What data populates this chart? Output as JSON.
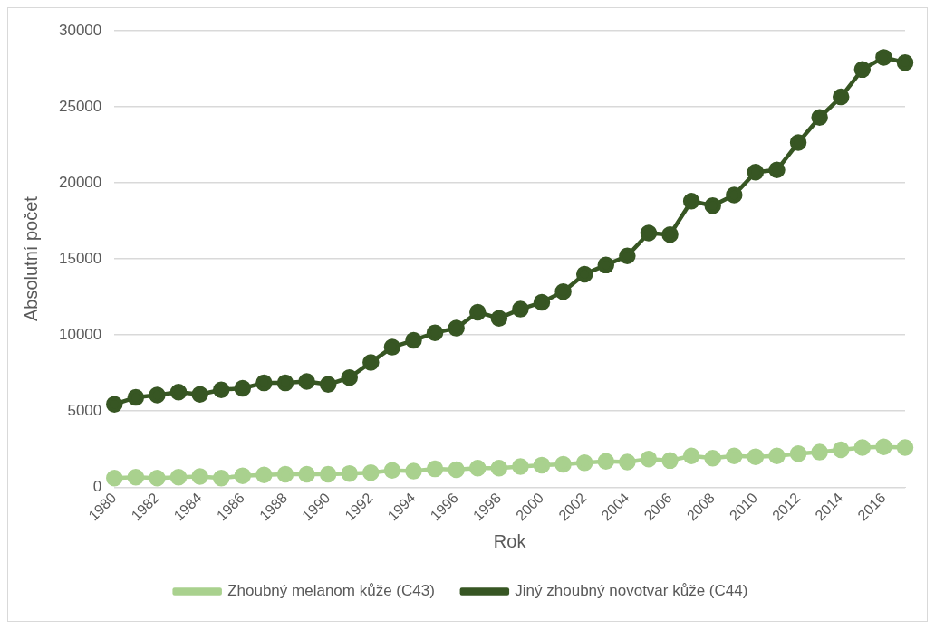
{
  "chart_data": {
    "type": "line",
    "xlabel": "Rok",
    "ylabel": "Absolutní počet",
    "categories": [
      "1980",
      null,
      "1982",
      null,
      "1984",
      null,
      "1986",
      null,
      "1988",
      null,
      "1990",
      null,
      "1992",
      null,
      "1994",
      null,
      "1996",
      null,
      "1998",
      null,
      "2000",
      null,
      "2002",
      null,
      "2004",
      null,
      "2006",
      null,
      "2008",
      null,
      "2010",
      null,
      "2012",
      null,
      "2014",
      null,
      "2016",
      null
    ],
    "series": [
      {
        "name": "Zhoubný melanom kůže (C43)",
        "color": "#a9d18e",
        "values": [
          600,
          650,
          600,
          650,
          700,
          600,
          750,
          800,
          850,
          850,
          850,
          900,
          950,
          1100,
          1050,
          1200,
          1150,
          1250,
          1250,
          1350,
          1450,
          1500,
          1600,
          1700,
          1650,
          1850,
          1750,
          2050,
          1900,
          2050,
          2000,
          2050,
          2200,
          2300,
          2450,
          2600,
          2650,
          2600
        ]
      },
      {
        "name": "Jiný zhoubný novotvar kůže (C44)",
        "color": "#375623",
        "values": [
          5450,
          5900,
          6050,
          6250,
          6100,
          6400,
          6500,
          6850,
          6850,
          6950,
          6750,
          7200,
          8200,
          9200,
          9650,
          10150,
          10450,
          11500,
          11100,
          11700,
          12150,
          12850,
          14000,
          14600,
          15200,
          16700,
          16600,
          18800,
          18500,
          19200,
          20700,
          20850,
          22650,
          24300,
          25650,
          27450,
          28250,
          27900
        ]
      }
    ],
    "ylim": [
      0,
      30000
    ],
    "yticks": [
      0,
      5000,
      10000,
      15000,
      20000,
      25000,
      30000
    ],
    "grid": "y",
    "legend": "bottom",
    "marker": "circle",
    "line_style": "solid"
  }
}
